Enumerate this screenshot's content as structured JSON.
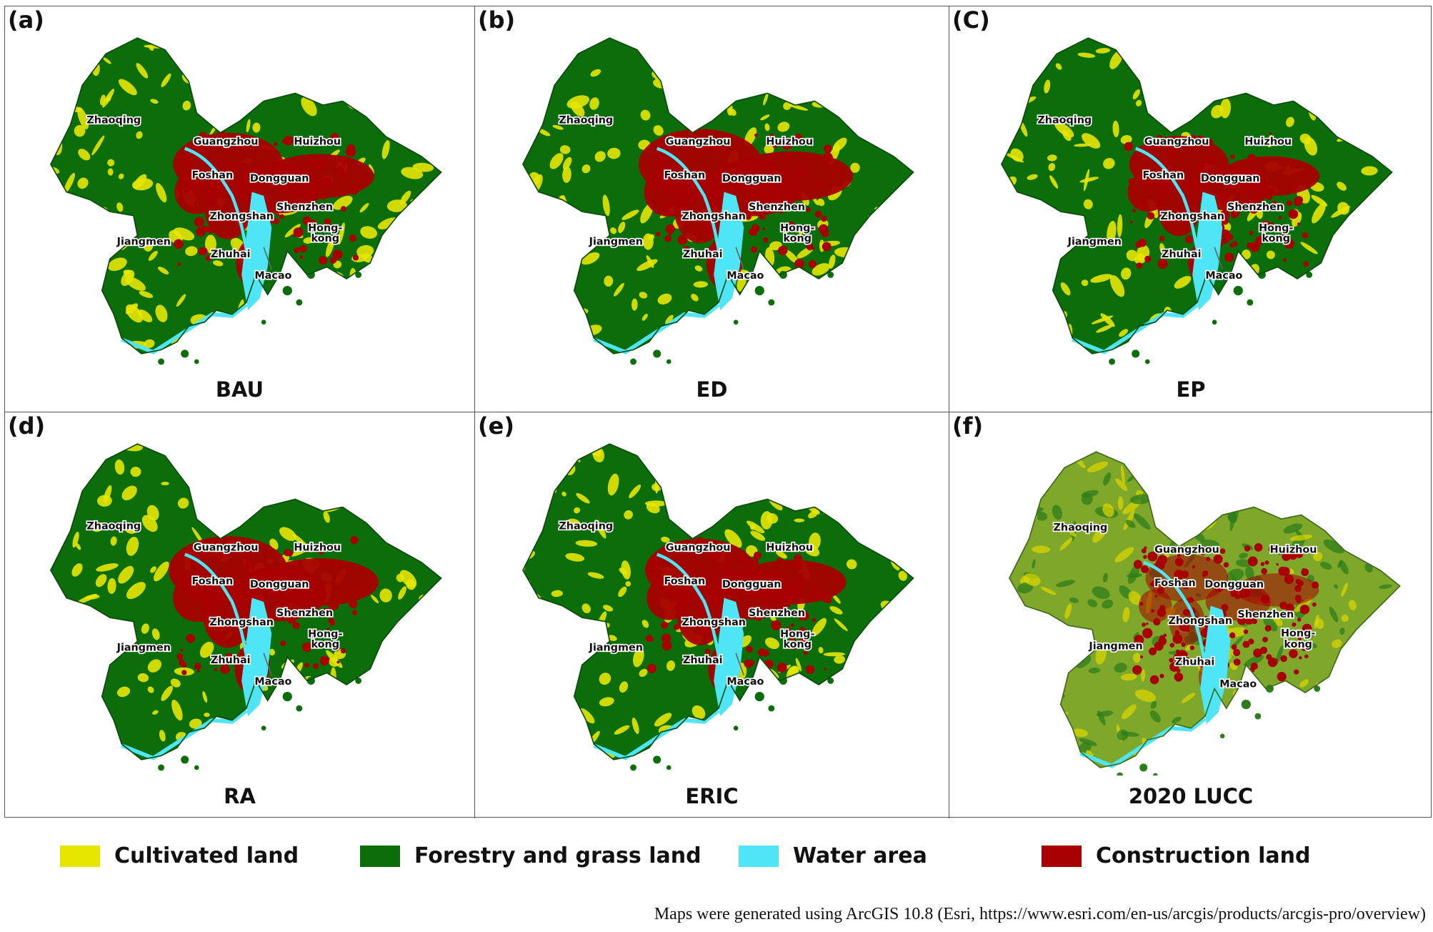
{
  "panels": [
    {
      "letter": "(a)",
      "title": "BAU",
      "style": "scenario"
    },
    {
      "letter": "(b)",
      "title": "ED",
      "style": "scenario"
    },
    {
      "letter": "(C)",
      "title": "EP",
      "style": "scenario"
    },
    {
      "letter": "(d)",
      "title": "RA",
      "style": "scenario"
    },
    {
      "letter": "(e)",
      "title": "ERIC",
      "style": "scenario"
    },
    {
      "letter": "(f)",
      "title": "2020 LUCC",
      "style": "observed"
    }
  ],
  "cities": [
    "Zhaoqing",
    "Guangzhou",
    "Huizhou",
    "Foshan",
    "Dongguan",
    "Shenzhen",
    "Zhongshan",
    "Jiangmen",
    "Zhuhai",
    "Hong-",
    "kong",
    "Macao"
  ],
  "legend": [
    {
      "label": "Cultivated land",
      "color": "#e6e600"
    },
    {
      "label": "Forestry and grass land",
      "color": "#0b6e0b"
    },
    {
      "label": "Water area",
      "color": "#4ee6f7"
    },
    {
      "label": "Construction land",
      "color": "#a80000"
    }
  ],
  "footnote": "Maps were generated using ArcGIS 10.8 (Esri, https://www.esri.com/en-us/arcgis/products/arcgis-pro/overview)"
}
